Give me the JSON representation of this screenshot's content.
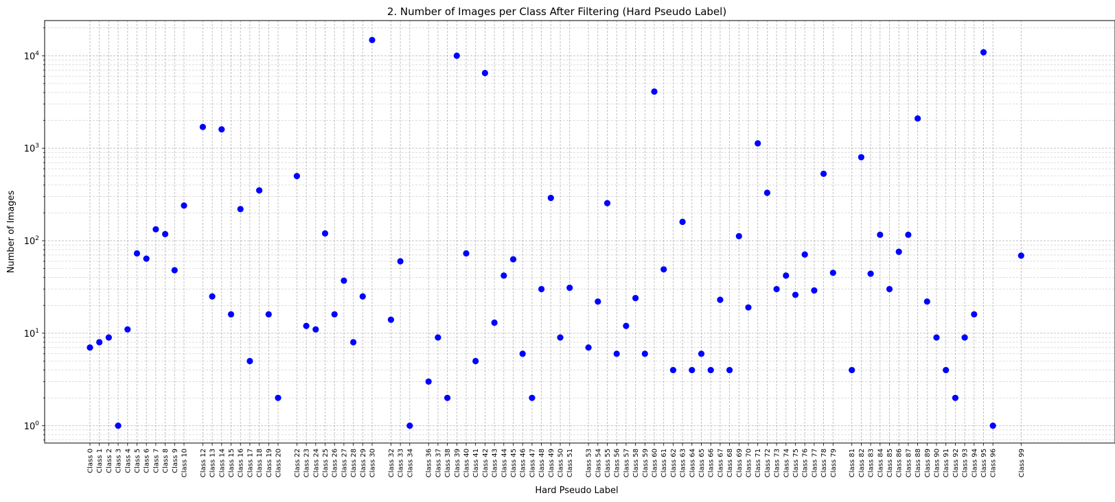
{
  "chart_data": {
    "type": "scatter",
    "title": "2. Number of Images per Class After Filtering (Hard Pseudo Label)",
    "xlabel": "Hard Pseudo Label",
    "ylabel": "Number of Images",
    "yscale": "log",
    "ylim": [
      0.65,
      24000
    ],
    "grid": true,
    "marker_color": "#0000ff",
    "ytick_labels": [
      {
        "base": "10",
        "exp": "0",
        "value": 1
      },
      {
        "base": "10",
        "exp": "1",
        "value": 10
      },
      {
        "base": "10",
        "exp": "2",
        "value": 100
      },
      {
        "base": "10",
        "exp": "3",
        "value": 1000
      },
      {
        "base": "10",
        "exp": "4",
        "value": 10000
      }
    ],
    "categories": [
      "Class 0",
      "Class 1",
      "Class 2",
      "Class 3",
      "Class 4",
      "Class 5",
      "Class 6",
      "Class 7",
      "Class 8",
      "Class 9",
      "Class 10",
      "Class 12",
      "Class 13",
      "Class 14",
      "Class 15",
      "Class 16",
      "Class 17",
      "Class 18",
      "Class 19",
      "Class 20",
      "Class 22",
      "Class 23",
      "Class 24",
      "Class 25",
      "Class 26",
      "Class 27",
      "Class 28",
      "Class 29",
      "Class 30",
      "Class 32",
      "Class 33",
      "Class 34",
      "Class 36",
      "Class 37",
      "Class 38",
      "Class 39",
      "Class 40",
      "Class 41",
      "Class 42",
      "Class 43",
      "Class 44",
      "Class 45",
      "Class 46",
      "Class 47",
      "Class 48",
      "Class 49",
      "Class 50",
      "Class 51",
      "Class 53",
      "Class 54",
      "Class 55",
      "Class 56",
      "Class 57",
      "Class 58",
      "Class 59",
      "Class 60",
      "Class 61",
      "Class 62",
      "Class 63",
      "Class 64",
      "Class 65",
      "Class 66",
      "Class 67",
      "Class 68",
      "Class 69",
      "Class 70",
      "Class 71",
      "Class 72",
      "Class 73",
      "Class 74",
      "Class 75",
      "Class 76",
      "Class 77",
      "Class 78",
      "Class 79",
      "Class 81",
      "Class 82",
      "Class 83",
      "Class 84",
      "Class 85",
      "Class 86",
      "Class 87",
      "Class 88",
      "Class 89",
      "Class 90",
      "Class 91",
      "Class 92",
      "Class 93",
      "Class 94",
      "Class 95",
      "Class 96",
      "Class 99"
    ],
    "values": [
      7,
      8,
      9,
      1,
      11,
      73,
      64,
      133,
      118,
      48,
      240,
      1700,
      25,
      1600,
      16,
      220,
      5,
      350,
      16,
      2,
      500,
      12,
      11,
      120,
      16,
      37,
      8,
      25,
      14800,
      14,
      60,
      1,
      3,
      9,
      2,
      10000,
      73,
      5,
      6500,
      13,
      42,
      63,
      6,
      2,
      30,
      290,
      9,
      31,
      7,
      22,
      255,
      6,
      12,
      24,
      6,
      4100,
      49,
      4,
      160,
      4,
      6,
      4,
      23,
      4,
      112,
      19,
      1130,
      330,
      30,
      42,
      26,
      71,
      29,
      530,
      45,
      4,
      800,
      44,
      116,
      30,
      76,
      116,
      2100,
      22,
      9,
      4,
      2,
      9,
      16,
      10900,
      1,
      69
    ]
  }
}
